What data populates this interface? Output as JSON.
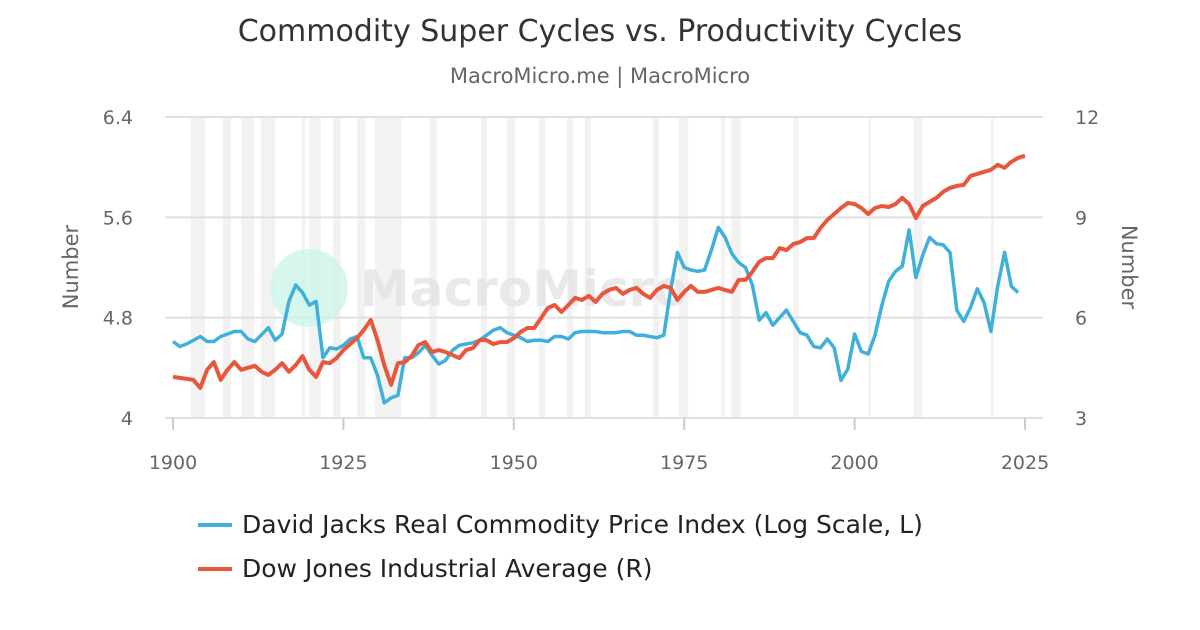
{
  "chart_data": {
    "type": "line",
    "title": "Commodity Super Cycles vs. Productivity Cycles",
    "subtitle": "MacroMicro.me | MacroMicro",
    "watermark": "MacroMicro",
    "xlim": [
      1900,
      2025
    ],
    "x_ticks": [
      "1900",
      "1925",
      "1950",
      "1975",
      "2000",
      "2025"
    ],
    "y_left": {
      "label": "Number",
      "range": [
        4,
        6.4
      ],
      "ticks": [
        "4",
        "4.8",
        "5.6",
        "6.4"
      ]
    },
    "y_right": {
      "label": "Number",
      "range": [
        3,
        12
      ],
      "ticks": [
        "3",
        "6",
        "9",
        "12"
      ]
    },
    "grid": true,
    "legend_position": "bottom",
    "shaded_periods": [
      [
        1902.6,
        1904.7
      ],
      [
        1907.3,
        1908.5
      ],
      [
        1910.0,
        1911.9
      ],
      [
        1912.9,
        1915.0
      ],
      [
        1918.9,
        1919.4
      ],
      [
        1920.0,
        1921.7
      ],
      [
        1923.5,
        1924.6
      ],
      [
        1927.0,
        1928.2
      ],
      [
        1929.6,
        1933.5
      ],
      [
        1937.6,
        1938.7
      ],
      [
        1945.2,
        1946.1
      ],
      [
        1949.0,
        1950.2
      ],
      [
        1953.7,
        1954.6
      ],
      [
        1957.8,
        1958.7
      ],
      [
        1960.4,
        1961.3
      ],
      [
        1970.4,
        1971.3
      ],
      [
        1974.2,
        1975.6
      ],
      [
        1980.4,
        1981.0
      ],
      [
        1981.9,
        1983.3
      ],
      [
        1991.0,
        1991.8
      ],
      [
        2002.0,
        2002.4
      ],
      [
        2008.6,
        2010.0
      ],
      [
        2020.0,
        2020.4
      ]
    ],
    "shade_color": "#f2f2f2",
    "series": [
      {
        "name": "David Jacks Real Commodity Price Index (Log Scale, L)",
        "axis": "left",
        "color": "#3fb0d9",
        "x": [
          1900,
          1901,
          1902,
          1904,
          1905,
          1906,
          1907,
          1909,
          1910,
          1911,
          1912,
          1914,
          1915,
          1916,
          1917,
          1918,
          1919,
          1920,
          1921,
          1922,
          1923,
          1924,
          1925,
          1926,
          1927,
          1928,
          1929,
          1930,
          1931,
          1932,
          1933,
          1934,
          1935,
          1936,
          1937,
          1938,
          1939,
          1940,
          1941,
          1942,
          1943,
          1944,
          1945,
          1946,
          1947,
          1948,
          1949,
          1950,
          1951,
          1952,
          1953,
          1954,
          1955,
          1956,
          1957,
          1958,
          1959,
          1960,
          1961,
          1962,
          1963,
          1964,
          1965,
          1966,
          1967,
          1968,
          1969,
          1970,
          1971,
          1972,
          1973,
          1974,
          1975,
          1976,
          1977,
          1978,
          1979,
          1980,
          1981,
          1982,
          1983,
          1984,
          1985,
          1986,
          1987,
          1988,
          1989,
          1990,
          1991,
          1992,
          1993,
          1994,
          1995,
          1996,
          1997,
          1998,
          1999,
          2000,
          2001,
          2002,
          2003,
          2004,
          2005,
          2006,
          2007,
          2008,
          2009,
          2010,
          2011,
          2012,
          2013,
          2014,
          2015,
          2016,
          2017,
          2018,
          2019,
          2020,
          2021,
          2022,
          2023,
          2024
        ],
        "values": [
          4.61,
          4.57,
          4.59,
          4.65,
          4.61,
          4.61,
          4.65,
          4.69,
          4.69,
          4.63,
          4.61,
          4.72,
          4.62,
          4.67,
          4.93,
          5.06,
          5.0,
          4.9,
          4.93,
          4.48,
          4.56,
          4.55,
          4.58,
          4.63,
          4.65,
          4.48,
          4.48,
          4.34,
          4.12,
          4.16,
          4.18,
          4.48,
          4.48,
          4.52,
          4.58,
          4.5,
          4.43,
          4.46,
          4.54,
          4.58,
          4.59,
          4.6,
          4.62,
          4.66,
          4.7,
          4.72,
          4.68,
          4.66,
          4.64,
          4.61,
          4.62,
          4.62,
          4.61,
          4.65,
          4.65,
          4.63,
          4.68,
          4.69,
          4.69,
          4.69,
          4.68,
          4.68,
          4.68,
          4.69,
          4.69,
          4.66,
          4.66,
          4.65,
          4.64,
          4.66,
          5.02,
          5.32,
          5.2,
          5.18,
          5.17,
          5.18,
          5.34,
          5.52,
          5.44,
          5.31,
          5.24,
          5.2,
          5.06,
          4.78,
          4.84,
          4.74,
          4.8,
          4.86,
          4.77,
          4.68,
          4.66,
          4.57,
          4.56,
          4.63,
          4.56,
          4.3,
          4.39,
          4.67,
          4.53,
          4.51,
          4.66,
          4.9,
          5.09,
          5.17,
          5.21,
          5.5,
          5.12,
          5.3,
          5.44,
          5.39,
          5.38,
          5.32,
          4.86,
          4.77,
          4.88,
          5.03,
          4.92,
          4.69,
          5.05,
          5.32,
          5.05,
          5.0
        ]
      },
      {
        "name": "Dow Jones Industrial Average (R)",
        "axis": "right",
        "color": "#e8573c",
        "x": [
          1900,
          1903,
          1904,
          1905,
          1906,
          1907,
          1908,
          1909,
          1910,
          1911,
          1912,
          1913,
          1914,
          1915,
          1916,
          1917,
          1918,
          1919,
          1920,
          1921,
          1922,
          1923,
          1924,
          1925,
          1926,
          1927,
          1928,
          1929,
          1930,
          1931,
          1932,
          1933,
          1934,
          1935,
          1936,
          1937,
          1938,
          1939,
          1940,
          1941,
          1942,
          1943,
          1944,
          1945,
          1946,
          1947,
          1948,
          1949,
          1950,
          1951,
          1952,
          1953,
          1954,
          1955,
          1956,
          1957,
          1958,
          1959,
          1960,
          1961,
          1962,
          1963,
          1964,
          1965,
          1966,
          1967,
          1968,
          1969,
          1970,
          1971,
          1972,
          1973,
          1974,
          1975,
          1976,
          1977,
          1978,
          1979,
          1980,
          1981,
          1982,
          1983,
          1984,
          1985,
          1986,
          1987,
          1988,
          1989,
          1990,
          1991,
          1992,
          1993,
          1994,
          1995,
          1996,
          1997,
          1998,
          1999,
          2000,
          2001,
          2002,
          2003,
          2004,
          2005,
          2006,
          2007,
          2008,
          2009,
          2010,
          2011,
          2012,
          2013,
          2014,
          2015,
          2016,
          2017,
          2018,
          2019,
          2020,
          2021,
          2022,
          2023,
          2024,
          2025
        ],
        "values": [
          4.23,
          4.14,
          3.9,
          4.44,
          4.67,
          4.14,
          4.44,
          4.67,
          4.44,
          4.5,
          4.56,
          4.38,
          4.29,
          4.44,
          4.64,
          4.38,
          4.58,
          4.85,
          4.44,
          4.23,
          4.67,
          4.64,
          4.79,
          5.03,
          5.21,
          5.39,
          5.63,
          5.93,
          5.33,
          4.58,
          3.99,
          4.64,
          4.67,
          4.85,
          5.18,
          5.27,
          4.97,
          5.03,
          4.97,
          4.88,
          4.79,
          5.03,
          5.09,
          5.33,
          5.33,
          5.21,
          5.27,
          5.27,
          5.39,
          5.57,
          5.69,
          5.69,
          5.99,
          6.29,
          6.38,
          6.17,
          6.38,
          6.59,
          6.53,
          6.65,
          6.47,
          6.71,
          6.83,
          6.89,
          6.71,
          6.83,
          6.89,
          6.71,
          6.59,
          6.83,
          6.95,
          6.89,
          6.53,
          6.77,
          6.95,
          6.77,
          6.77,
          6.83,
          6.89,
          6.83,
          6.77,
          7.13,
          7.13,
          7.37,
          7.67,
          7.78,
          7.78,
          8.08,
          8.02,
          8.2,
          8.26,
          8.38,
          8.38,
          8.68,
          8.92,
          9.1,
          9.28,
          9.43,
          9.4,
          9.28,
          9.1,
          9.28,
          9.34,
          9.31,
          9.4,
          9.58,
          9.4,
          8.98,
          9.34,
          9.46,
          9.58,
          9.76,
          9.88,
          9.94,
          9.97,
          10.24,
          10.3,
          10.36,
          10.42,
          10.57,
          10.48,
          10.66,
          10.78,
          10.84
        ]
      }
    ]
  }
}
